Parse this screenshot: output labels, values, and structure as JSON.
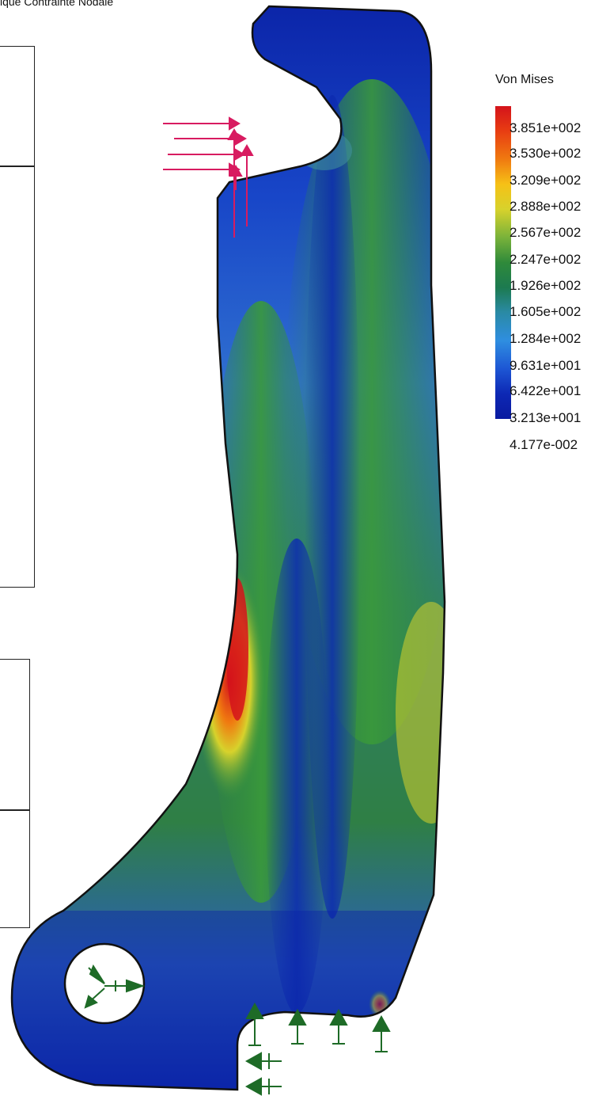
{
  "page": {
    "title": "ique Contrainte Nodale"
  },
  "legend": {
    "title": "Von Mises",
    "ticks": [
      "3.851e+002",
      "3.530e+002",
      "3.209e+002",
      "2.888e+002",
      "2.567e+002",
      "2.247e+002",
      "1.926e+002",
      "1.605e+002",
      "1.284e+002",
      "9.631e+001",
      "6.422e+001",
      "3.213e+001",
      "4.177e-002"
    ],
    "colors": [
      "#d4131b",
      "#f6c116",
      "#2f8a3a",
      "#2f8ee0",
      "#0a1aa0"
    ]
  },
  "colors": {
    "load_arrow": "#d81b60",
    "support": "#1e6b27",
    "part_outline": "#111111"
  },
  "icons": {
    "load": "force-arrow-icon",
    "support": "fixed-support-icon"
  }
}
